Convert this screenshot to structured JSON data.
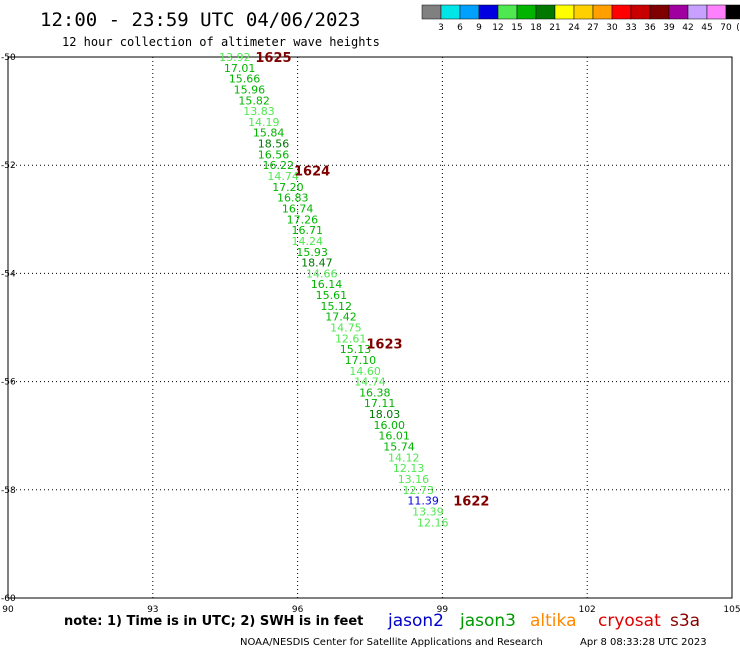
{
  "header": {
    "title": "12:00 - 23:59 UTC 04/06/2023",
    "subtitle": "12 hour collection of altimeter wave heights"
  },
  "scale": {
    "labels": [
      "3",
      "6",
      "9",
      "12",
      "15",
      "18",
      "21",
      "24",
      "27",
      "30",
      "33",
      "36",
      "39",
      "42",
      "45",
      "70"
    ],
    "unit": "(ft)",
    "colors": [
      "#808080",
      "#00e5e5",
      "#00a0ff",
      "#0000e0",
      "#50e850",
      "#00b400",
      "#007800",
      "#ffff00",
      "#ffd000",
      "#ffa000",
      "#ff0000",
      "#c80000",
      "#800000",
      "#a000a0",
      "#c8a0ff",
      "#ff80ff",
      "#000000"
    ]
  },
  "footer": {
    "note": "note: 1) Time is in UTC; 2) SWH is in feet",
    "credit": "NOAA/NESDIS Center for Satellite Applications and Research",
    "timestamp": "Apr  8 08:33:28 UTC 2023",
    "satellites": [
      {
        "name": "jason2",
        "color": "#0000cc"
      },
      {
        "name": "jason3",
        "color": "#009900"
      },
      {
        "name": "altika",
        "color": "#ff8800"
      },
      {
        "name": "cryosat",
        "color": "#dd0000"
      },
      {
        "name": "s3a",
        "color": "#880000"
      }
    ]
  },
  "chart_data": {
    "type": "scatter",
    "title": "12:00 - 23:59 UTC 04/06/2023",
    "xlabel": "",
    "ylabel": "",
    "xlim": [
      90,
      105
    ],
    "ylim": [
      -60,
      -50
    ],
    "x_ticks": [
      90,
      93,
      96,
      99,
      102,
      105
    ],
    "y_ticks": [
      -50,
      -52,
      -54,
      -56,
      -58,
      -60
    ],
    "grid": true,
    "points": [
      {
        "x": 94.7,
        "y": -50.0,
        "label": "13.92"
      },
      {
        "x": 94.8,
        "y": -50.2,
        "label": "17.01"
      },
      {
        "x": 94.9,
        "y": -50.4,
        "label": "15.66"
      },
      {
        "x": 95.0,
        "y": -50.6,
        "label": "15.96"
      },
      {
        "x": 95.1,
        "y": -50.8,
        "label": "15.82"
      },
      {
        "x": 95.2,
        "y": -51.0,
        "label": "13.83"
      },
      {
        "x": 95.3,
        "y": -51.2,
        "label": "14.19"
      },
      {
        "x": 95.4,
        "y": -51.4,
        "label": "15.84"
      },
      {
        "x": 95.5,
        "y": -51.6,
        "label": "18.56"
      },
      {
        "x": 95.5,
        "y": -51.8,
        "label": "16.56"
      },
      {
        "x": 95.6,
        "y": -52.0,
        "label": "16.22"
      },
      {
        "x": 95.7,
        "y": -52.2,
        "label": "14.74"
      },
      {
        "x": 95.8,
        "y": -52.4,
        "label": "17.20"
      },
      {
        "x": 95.9,
        "y": -52.6,
        "label": "16.83"
      },
      {
        "x": 96.0,
        "y": -52.8,
        "label": "16.74"
      },
      {
        "x": 96.1,
        "y": -53.0,
        "label": "17.26"
      },
      {
        "x": 96.2,
        "y": -53.2,
        "label": "16.71"
      },
      {
        "x": 96.2,
        "y": -53.4,
        "label": "14.24"
      },
      {
        "x": 96.3,
        "y": -53.6,
        "label": "15.93"
      },
      {
        "x": 96.4,
        "y": -53.8,
        "label": "18.47"
      },
      {
        "x": 96.5,
        "y": -54.0,
        "label": "14.66"
      },
      {
        "x": 96.6,
        "y": -54.2,
        "label": "16.14"
      },
      {
        "x": 96.7,
        "y": -54.4,
        "label": "15.61"
      },
      {
        "x": 96.8,
        "y": -54.6,
        "label": "15.12"
      },
      {
        "x": 96.9,
        "y": -54.8,
        "label": "17.42"
      },
      {
        "x": 97.0,
        "y": -55.0,
        "label": "14.75"
      },
      {
        "x": 97.1,
        "y": -55.2,
        "label": "12.61"
      },
      {
        "x": 97.2,
        "y": -55.4,
        "label": "15.13"
      },
      {
        "x": 97.3,
        "y": -55.6,
        "label": "17.10"
      },
      {
        "x": 97.4,
        "y": -55.8,
        "label": "14.60"
      },
      {
        "x": 97.5,
        "y": -56.0,
        "label": "14.74"
      },
      {
        "x": 97.6,
        "y": -56.2,
        "label": "16.38"
      },
      {
        "x": 97.7,
        "y": -56.4,
        "label": "17.11"
      },
      {
        "x": 97.8,
        "y": -56.6,
        "label": "18.03"
      },
      {
        "x": 97.9,
        "y": -56.8,
        "label": "16.00"
      },
      {
        "x": 98.0,
        "y": -57.0,
        "label": "16.01"
      },
      {
        "x": 98.1,
        "y": -57.2,
        "label": "15.74"
      },
      {
        "x": 98.2,
        "y": -57.4,
        "label": "14.12"
      },
      {
        "x": 98.3,
        "y": -57.6,
        "label": "12.13"
      },
      {
        "x": 98.4,
        "y": -57.8,
        "label": "13.16"
      },
      {
        "x": 98.5,
        "y": -58.0,
        "label": "12.73"
      },
      {
        "x": 98.6,
        "y": -58.2,
        "label": "11.39"
      },
      {
        "x": 98.7,
        "y": -58.4,
        "label": "13.39"
      },
      {
        "x": 98.8,
        "y": -58.6,
        "label": "12.16"
      }
    ],
    "pass_labels": [
      {
        "label": "1625",
        "x": 95.5,
        "y": -50.0
      },
      {
        "label": "1624",
        "x": 96.3,
        "y": -52.1
      },
      {
        "label": "1623",
        "x": 97.8,
        "y": -55.3
      },
      {
        "label": "1622",
        "x": 99.6,
        "y": -58.2
      }
    ]
  }
}
